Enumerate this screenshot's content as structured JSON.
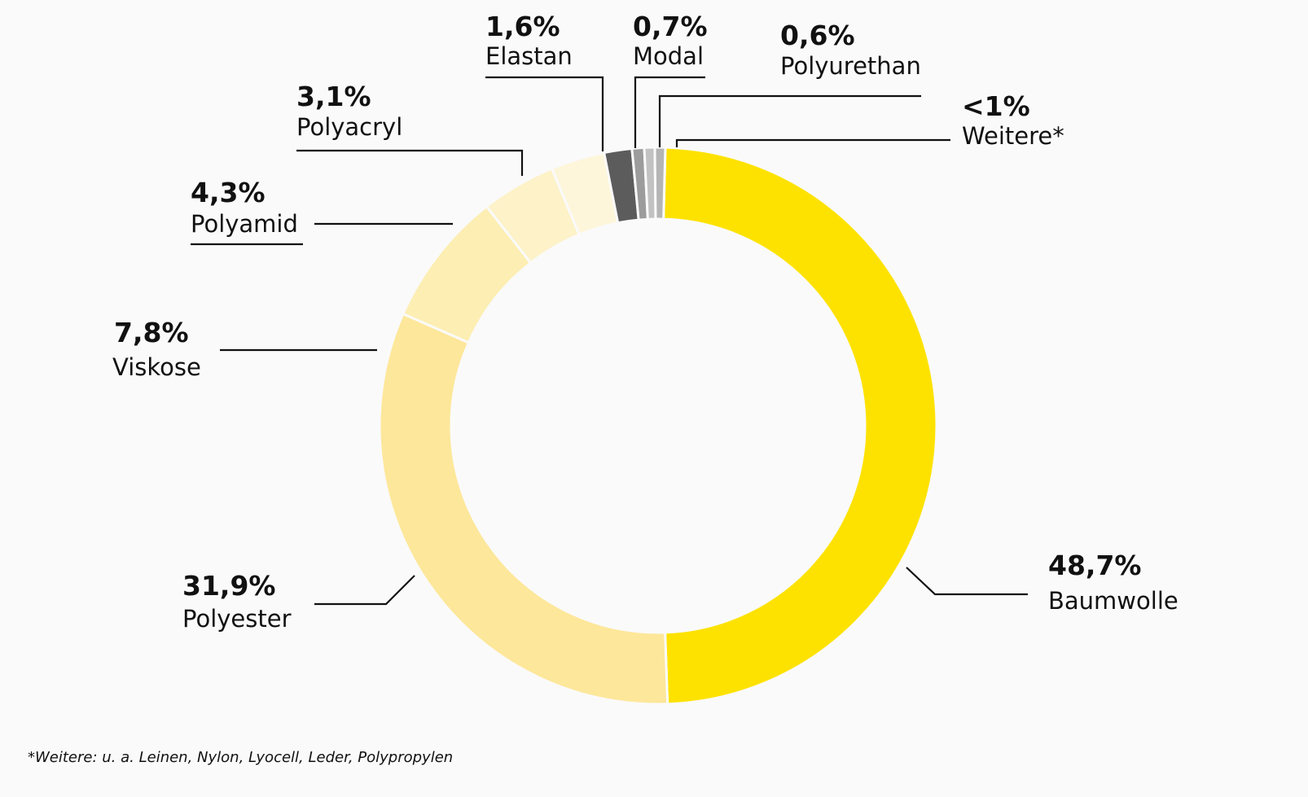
{
  "chart_data": {
    "type": "pie",
    "style": "donut",
    "slices": [
      {
        "label": "Baumwolle",
        "value_label": "48,7%",
        "value": 48.7,
        "color": "#fde200"
      },
      {
        "label": "Polyester",
        "value_label": "31,9%",
        "value": 31.9,
        "color": "#fde79a"
      },
      {
        "label": "Viskose",
        "value_label": "7,8%",
        "value": 7.8,
        "color": "#fdeeb3"
      },
      {
        "label": "Polyamid",
        "value_label": "4,3%",
        "value": 4.3,
        "color": "#fdf2c8"
      },
      {
        "label": "Polyacryl",
        "value_label": "3,1%",
        "value": 3.1,
        "color": "#fdf6da"
      },
      {
        "label": "Elastan",
        "value_label": "1,6%",
        "value": 1.6,
        "color": "#5c5c5c"
      },
      {
        "label": "Modal",
        "value_label": "0,7%",
        "value": 0.7,
        "color": "#9c9c9c"
      },
      {
        "label": "Polyurethan",
        "value_label": "0,6%",
        "value": 0.6,
        "color": "#c2c2c2"
      },
      {
        "label": "Weitere*",
        "value_label": "<1%",
        "value": 0.6,
        "color": "#b5b5b5"
      }
    ]
  },
  "footnote": "*Weitere: u. a. Leinen, Nylon, Lyocell, Leder, Polypropylen"
}
